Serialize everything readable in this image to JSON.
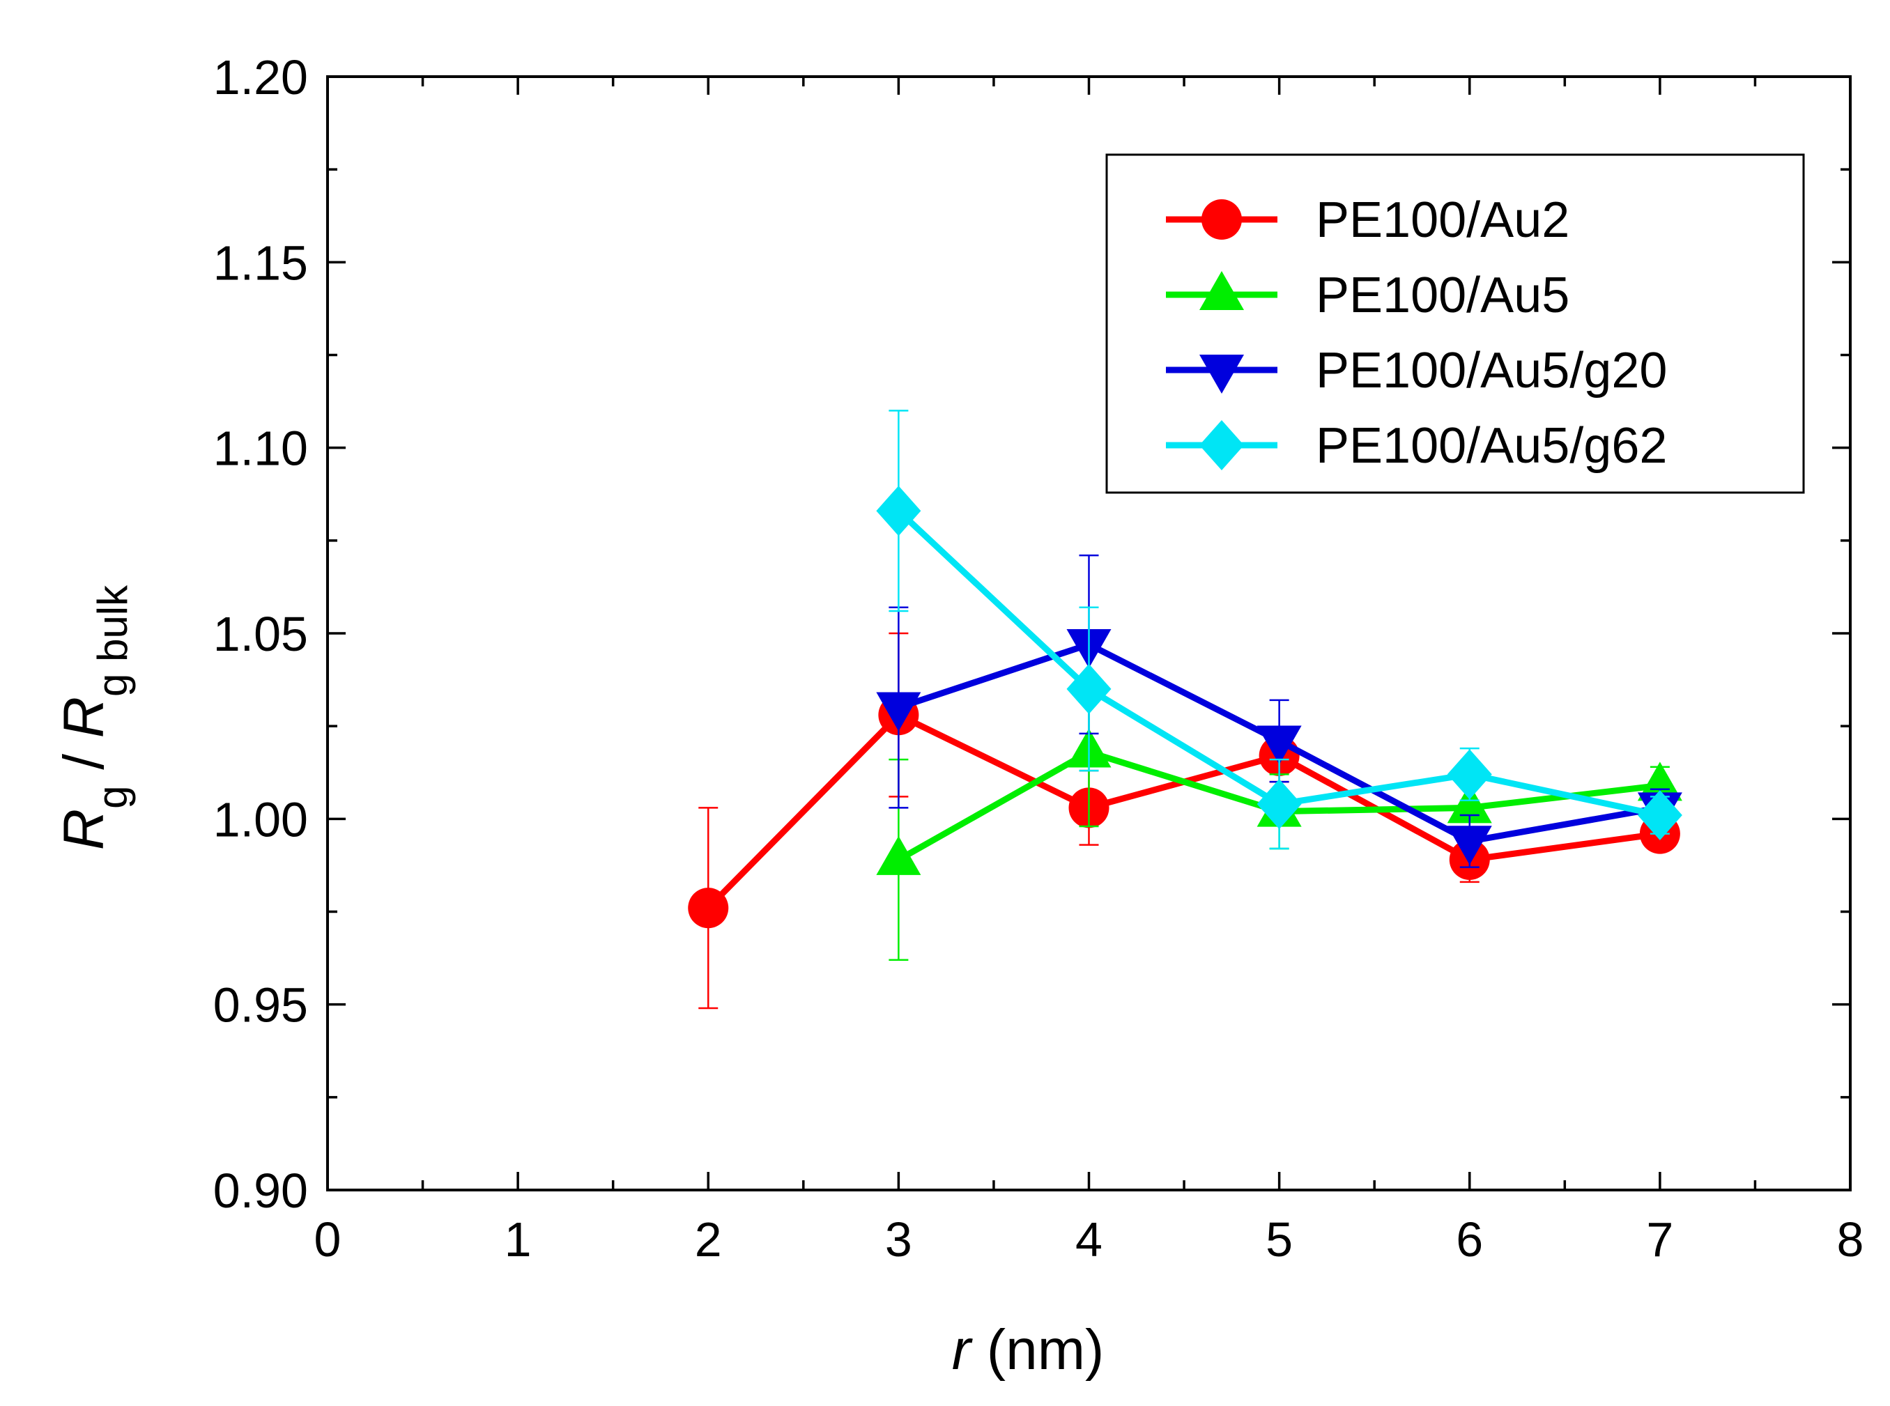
{
  "chart_data": {
    "type": "line",
    "title": "",
    "xlabel": "r (nm)",
    "xlabel_var": "r",
    "xlabel_unit": " (nm)",
    "ylabel": "Rg / Rg bulk",
    "ylabel_parts": {
      "num_var": "R",
      "num_sub": "g",
      "sep": " / ",
      "den_var": "R",
      "den_sub": "g bulk"
    },
    "xlim": [
      0,
      8
    ],
    "ylim": [
      0.9,
      1.2
    ],
    "xticks": [
      "0",
      "1",
      "2",
      "3",
      "4",
      "5",
      "6",
      "7",
      "8"
    ],
    "yticks": [
      "0.90",
      "0.95",
      "1.00",
      "1.05",
      "1.10",
      "1.15",
      "1.20"
    ],
    "grid": false,
    "legend_position": "top-right",
    "series": [
      {
        "name": "PE100/Au2",
        "color": "#ff0000",
        "marker": "circle",
        "x": [
          2,
          3,
          4,
          5,
          6,
          7
        ],
        "y": [
          0.976,
          1.028,
          1.003,
          1.017,
          0.989,
          0.996
        ],
        "err": [
          0.027,
          0.022,
          0.01,
          0.007,
          0.006,
          0.004
        ]
      },
      {
        "name": "PE100/Au5",
        "color": "#00ee00",
        "marker": "triangle-up",
        "x": [
          3,
          4,
          5,
          6,
          7
        ],
        "y": [
          0.989,
          1.018,
          1.002,
          1.003,
          1.009
        ],
        "err": [
          0.027,
          0.02,
          0.01,
          0.006,
          0.005
        ]
      },
      {
        "name": "PE100/Au5/g20",
        "color": "#0000dd",
        "marker": "triangle-down",
        "x": [
          3,
          4,
          5,
          6,
          7
        ],
        "y": [
          1.03,
          1.047,
          1.021,
          0.994,
          1.003
        ],
        "err": [
          0.027,
          0.024,
          0.011,
          0.007,
          0.005
        ]
      },
      {
        "name": "PE100/Au5/g62",
        "color": "#00e5f5",
        "marker": "diamond",
        "x": [
          3,
          4,
          5,
          6,
          7
        ],
        "y": [
          1.083,
          1.035,
          1.004,
          1.012,
          1.001
        ],
        "err": [
          0.027,
          0.022,
          0.012,
          0.007,
          0.005
        ]
      }
    ]
  }
}
